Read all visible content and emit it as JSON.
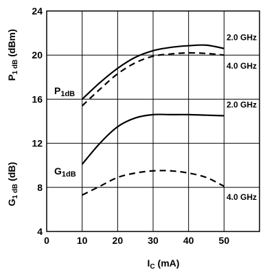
{
  "chart_data": {
    "type": "line",
    "title": "",
    "x_axis": {
      "label_main": "I",
      "label_sub": "C",
      "label_unit": " (mA)",
      "range": [
        0,
        60
      ],
      "ticks": [
        "0",
        "10",
        "20",
        "30",
        "40",
        "50"
      ],
      "grid": true
    },
    "y_axis": {
      "range": [
        4,
        24
      ],
      "ticks": [
        "4",
        "8",
        "12",
        "16",
        "20",
        "24"
      ],
      "grid": true,
      "label_p": {
        "main": "P",
        "sub": "1 dB",
        "unit": " (dBm)"
      },
      "label_g": {
        "main": "G",
        "sub": "1 dB",
        "unit": " (dB)"
      }
    },
    "group_labels": {
      "p1db": {
        "main": "P",
        "sub": "1dB"
      },
      "g1db": {
        "main": "G",
        "sub": "1dB"
      }
    },
    "series": [
      {
        "group": "P1dB",
        "name": "2.0 GHz",
        "style": "solid",
        "x": [
          10,
          15,
          20,
          25,
          30,
          35,
          40,
          45,
          50
        ],
        "y": [
          16.0,
          17.5,
          18.8,
          19.8,
          20.4,
          20.7,
          20.85,
          20.9,
          20.6
        ]
      },
      {
        "group": "P1dB",
        "name": "4.0 GHz",
        "style": "dashed",
        "x": [
          10,
          15,
          20,
          25,
          30,
          35,
          40,
          45,
          50
        ],
        "y": [
          15.4,
          16.9,
          18.3,
          19.3,
          19.9,
          20.1,
          20.2,
          20.15,
          20.0
        ]
      },
      {
        "group": "G1dB",
        "name": "2.0 GHz",
        "style": "solid",
        "x": [
          10,
          15,
          20,
          25,
          30,
          35,
          40,
          45,
          50
        ],
        "y": [
          10.1,
          12.0,
          13.5,
          14.3,
          14.6,
          14.6,
          14.6,
          14.55,
          14.5
        ]
      },
      {
        "group": "G1dB",
        "name": "4.0 GHz",
        "style": "dashed",
        "x": [
          10,
          15,
          20,
          25,
          30,
          35,
          40,
          45,
          50
        ],
        "y": [
          7.3,
          8.1,
          8.9,
          9.3,
          9.5,
          9.5,
          9.3,
          8.9,
          8.1
        ]
      }
    ]
  }
}
